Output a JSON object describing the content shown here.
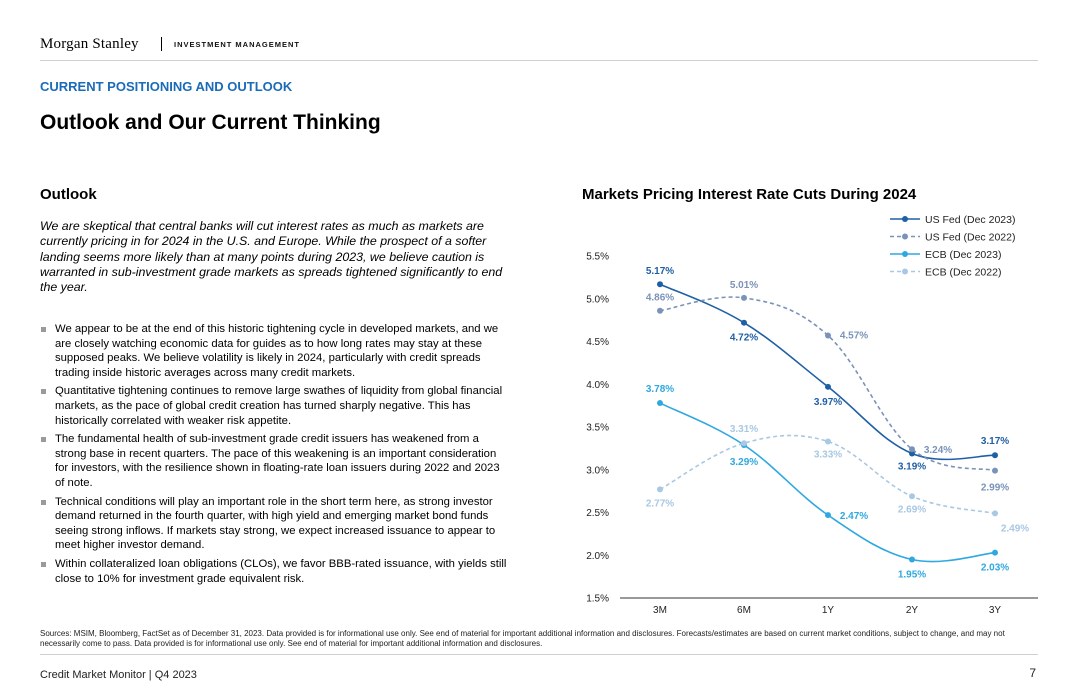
{
  "header": {
    "brand": "Morgan Stanley",
    "division": "INVESTMENT MANAGEMENT"
  },
  "section_label": "CURRENT POSITIONING AND OUTLOOK",
  "page_title": "Outlook and Our Current Thinking",
  "outlook": {
    "heading": "Outlook",
    "intro": "We are skeptical that central banks will cut interest rates as much as markets are currently pricing in for 2024 in the U.S. and Europe. While the prospect of a softer landing seems more likely than at many points during 2023, we believe caution is warranted in sub-investment grade markets as spreads tightened significantly to end the year.",
    "bullets": [
      "We appear to be at the end of this historic tightening cycle in developed markets, and we are closely watching economic data for guides as to how long rates may stay at these supposed peaks. We believe volatility is likely in 2024, particularly with credit spreads trading inside historic averages across many credit markets.",
      "Quantitative tightening continues to remove large swathes of liquidity from global financial markets, as the pace of global credit creation has turned sharply negative. This has historically correlated with weaker risk appetite.",
      "The fundamental health of sub-investment grade credit issuers has weakened from a strong base in recent quarters. The pace of this weakening is an important consideration for investors, with the resilience shown in floating-rate loan issuers during 2022 and 2023 of note.",
      "Technical conditions will play an important role in the short term here, as strong investor demand returned in the fourth quarter, with high yield and emerging market bond funds seeing strong inflows. If markets stay strong, we expect increased issuance to appear to meet higher investor demand.",
      "Within collateralized loan obligations (CLOs), we favor BBB-rated issuance, with yields still close to 10% for investment grade equivalent risk."
    ]
  },
  "chart_data": {
    "type": "line",
    "title": "Markets Pricing Interest Rate Cuts During 2024",
    "categories": [
      "3M",
      "6M",
      "1Y",
      "2Y",
      "3Y"
    ],
    "ylim": [
      1.5,
      5.5
    ],
    "yticks": [
      "1.5%",
      "2.0%",
      "2.5%",
      "3.0%",
      "3.5%",
      "4.0%",
      "4.5%",
      "5.0%",
      "5.5%"
    ],
    "legend_position": "top-right",
    "series": [
      {
        "name": "US Fed (Dec 2023)",
        "values": [
          5.17,
          4.72,
          3.97,
          3.19,
          3.17
        ],
        "labels": [
          "5.17%",
          "4.72%",
          "3.97%",
          "3.19%",
          "3.17%"
        ],
        "color": "#1f5fa6",
        "dashed": false
      },
      {
        "name": "US Fed (Dec 2022)",
        "values": [
          4.86,
          5.01,
          4.57,
          3.24,
          2.99
        ],
        "labels": [
          "4.86%",
          "5.01%",
          "4.57%",
          "3.24%",
          "2.99%"
        ],
        "color": "#7a93b8",
        "dashed": true
      },
      {
        "name": "ECB (Dec 2023)",
        "values": [
          3.78,
          3.29,
          2.47,
          1.95,
          2.03
        ],
        "labels": [
          "3.78%",
          "3.29%",
          "2.47%",
          "1.95%",
          "2.03%"
        ],
        "color": "#2fa8e0",
        "dashed": false
      },
      {
        "name": "ECB (Dec 2022)",
        "values": [
          2.77,
          3.31,
          3.33,
          2.69,
          2.49
        ],
        "labels": [
          "2.77%",
          "3.31%",
          "3.33%",
          "2.69%",
          "2.49%"
        ],
        "color": "#a9c8e3",
        "dashed": true
      }
    ]
  },
  "sources": "Sources: MSIM, Bloomberg, FactSet as of December 31, 2023. Data provided is for informational use only. See end of material for important additional information and disclosures. Forecasts/estimates are based on current market conditions, subject to change, and may not necessarily come to pass. Data provided is for informational use only. See end of material for important additional information and disclosures.",
  "footer": {
    "left": "Credit Market Monitor | Q4 2023",
    "page": "7"
  }
}
